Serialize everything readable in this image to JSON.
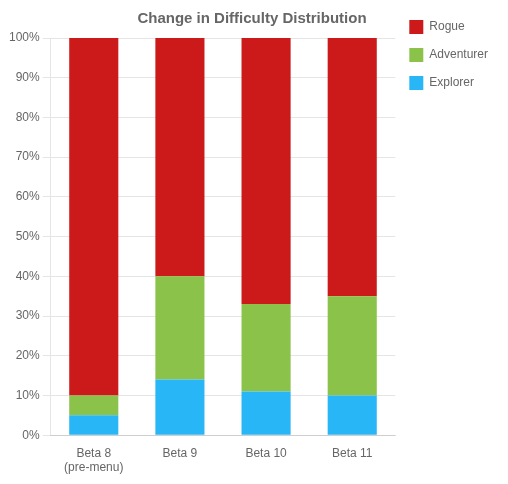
{
  "chart_data": {
    "type": "bar",
    "title": "Change in Difficulty Distribution",
    "categories": [
      "Beta 8\n(pre-menu)",
      "Beta 9",
      "Beta 10",
      "Beta 11"
    ],
    "series": [
      {
        "name": "Explorer",
        "color": "#29b6f6",
        "values": [
          5,
          14,
          11,
          10
        ]
      },
      {
        "name": "Adventurer",
        "color": "#8bc34a",
        "values": [
          5,
          26,
          22,
          25
        ]
      },
      {
        "name": "Rogue",
        "color": "#cc1a1a",
        "values": [
          90,
          60,
          67,
          65
        ]
      }
    ],
    "stacked": true,
    "ylim": [
      0,
      100
    ],
    "yticks": [
      {
        "value": 0,
        "label": "0%"
      },
      {
        "value": 10,
        "label": "10%"
      },
      {
        "value": 20,
        "label": "20%"
      },
      {
        "value": 30,
        "label": "30%"
      },
      {
        "value": 40,
        "label": "40%"
      },
      {
        "value": 50,
        "label": "50%"
      },
      {
        "value": 60,
        "label": "60%"
      },
      {
        "value": 70,
        "label": "70%"
      },
      {
        "value": 80,
        "label": "80%"
      },
      {
        "value": 90,
        "label": "90%"
      },
      {
        "value": 100,
        "label": "100%"
      }
    ],
    "grid": true,
    "legend": "right"
  }
}
